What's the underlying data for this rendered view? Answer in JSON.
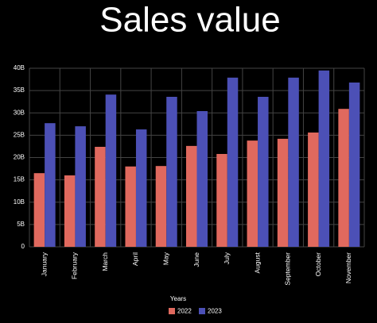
{
  "chart_data": {
    "type": "bar",
    "title": "Sales value",
    "categories": [
      "January",
      "February",
      "March",
      "April",
      "May",
      "June",
      "July",
      "August",
      "September",
      "October",
      "November"
    ],
    "series": [
      {
        "name": "2022",
        "color": "#e0695e",
        "values": [
          16500000000,
          16000000000,
          22400000000,
          18000000000,
          18100000000,
          22600000000,
          20800000000,
          23800000000,
          24200000000,
          25600000000,
          30900000000
        ]
      },
      {
        "name": "2023",
        "color": "#4c50b6",
        "values": [
          27700000000,
          27000000000,
          34100000000,
          26300000000,
          33600000000,
          30400000000,
          37900000000,
          33600000000,
          37900000000,
          39500000000,
          36800000000
        ]
      }
    ],
    "legend_title": "Years",
    "ylim": [
      0,
      40000000000
    ],
    "yticks": [
      0,
      {
        "value": 5000000000,
        "label": "5B"
      },
      {
        "value": 10000000000,
        "label": "10B"
      },
      {
        "value": 15000000000,
        "label": "15B"
      },
      {
        "value": 20000000000,
        "label": "20B"
      },
      {
        "value": 25000000000,
        "label": "25B"
      },
      {
        "value": 30000000000,
        "label": "30B"
      },
      {
        "value": 35000000000,
        "label": "35B"
      },
      {
        "value": 40000000000,
        "label": "40B"
      }
    ],
    "grid": true,
    "legend": "bottom"
  }
}
